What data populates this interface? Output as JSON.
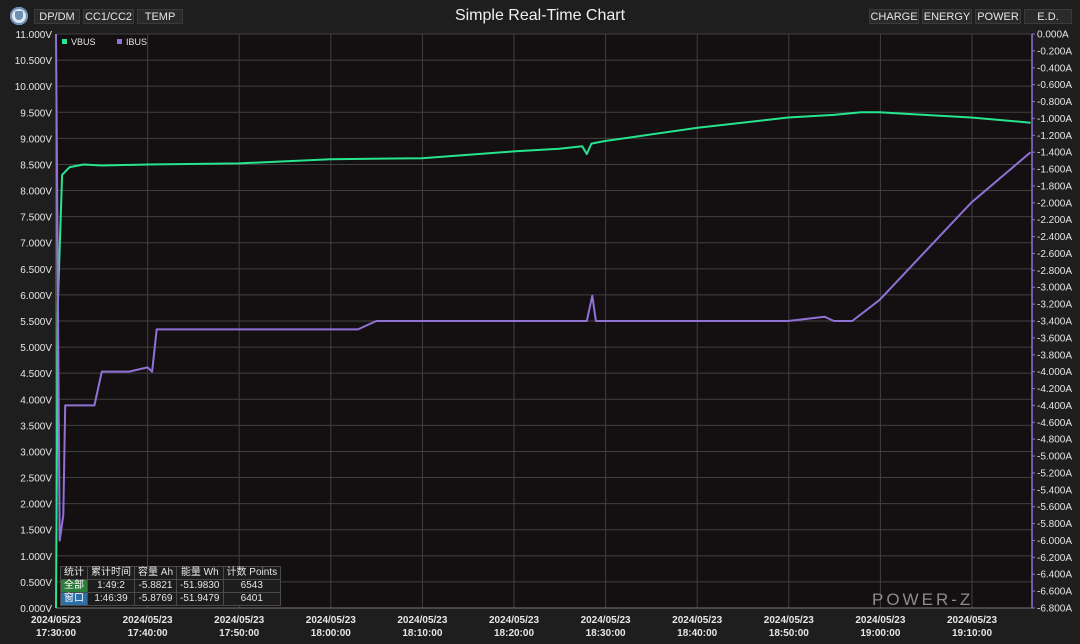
{
  "toolbar": {
    "left_tabs": [
      "DP/DM",
      "CC1/CC2",
      "TEMP"
    ],
    "right_tabs": [
      "CHARGE",
      "ENERGY",
      "POWER",
      "E.D."
    ]
  },
  "colors": {
    "vbus": "#27e48f",
    "ibus": "#9071d6",
    "plot_bg": "#140f11",
    "grid": "#404040"
  },
  "chart_data": {
    "type": "line",
    "title": "Simple Real-Time Chart",
    "legend": {
      "placement": "top-left",
      "entries": [
        "VBUS",
        "IBUS"
      ]
    },
    "grid": true,
    "x_ticks": [
      [
        "2024/05/23",
        "17:30:00"
      ],
      [
        "2024/05/23",
        "17:40:00"
      ],
      [
        "2024/05/23",
        "17:50:00"
      ],
      [
        "2024/05/23",
        "18:00:00"
      ],
      [
        "2024/05/23",
        "18:10:00"
      ],
      [
        "2024/05/23",
        "18:20:00"
      ],
      [
        "2024/05/23",
        "18:30:00"
      ],
      [
        "2024/05/23",
        "18:40:00"
      ],
      [
        "2024/05/23",
        "18:50:00"
      ],
      [
        "2024/05/23",
        "19:00:00"
      ],
      [
        "2024/05/23",
        "19:10:00"
      ]
    ],
    "x_range": [
      "17:30:00",
      "19:16:39"
    ],
    "y_left": {
      "unit": "V",
      "range": [
        0,
        11
      ],
      "ticks": [
        "11.000V",
        "10.500V",
        "10.000V",
        "9.500V",
        "9.000V",
        "8.500V",
        "8.000V",
        "7.500V",
        "7.000V",
        "6.500V",
        "6.000V",
        "5.500V",
        "5.000V",
        "4.500V",
        "4.000V",
        "3.500V",
        "3.000V",
        "2.500V",
        "2.000V",
        "1.500V",
        "1.000V",
        "0.500V",
        "0.000V"
      ]
    },
    "y_right": {
      "unit": "A",
      "range": [
        0,
        -6.8
      ],
      "ticks": [
        "0.000A",
        "-0.200A",
        "-0.400A",
        "-0.600A",
        "-0.800A",
        "-1.000A",
        "-1.200A",
        "-1.400A",
        "-1.600A",
        "-1.800A",
        "-2.000A",
        "-2.200A",
        "-2.400A",
        "-2.600A",
        "-2.800A",
        "-3.000A",
        "-3.200A",
        "-3.400A",
        "-3.600A",
        "-3.800A",
        "-4.000A",
        "-4.200A",
        "-4.400A",
        "-4.600A",
        "-4.800A",
        "-5.000A",
        "-5.200A",
        "-5.400A",
        "-5.600A",
        "-5.800A",
        "-6.000A",
        "-6.200A",
        "-6.400A",
        "-6.600A",
        "-6.800A"
      ]
    },
    "series": [
      {
        "name": "VBUS",
        "axis": "left",
        "x": [
          "17:30:00",
          "17:30:12",
          "17:30:40",
          "17:31:30",
          "17:33:00",
          "17:35:00",
          "17:40:00",
          "17:50:00",
          "18:00:00",
          "18:10:00",
          "18:20:00",
          "18:25:00",
          "18:27:30",
          "18:28:00",
          "18:28:30",
          "18:30:00",
          "18:40:00",
          "18:50:00",
          "18:55:00",
          "18:58:00",
          "19:00:00",
          "19:10:00",
          "19:16:30"
        ],
        "values": [
          0.0,
          5.8,
          8.3,
          8.45,
          8.5,
          8.48,
          8.5,
          8.52,
          8.6,
          8.62,
          8.75,
          8.8,
          8.85,
          8.7,
          8.9,
          8.95,
          9.2,
          9.4,
          9.45,
          9.5,
          9.5,
          9.4,
          9.3
        ]
      },
      {
        "name": "IBUS",
        "axis": "right",
        "x": [
          "17:30:00",
          "17:30:24",
          "17:30:48",
          "17:31:00",
          "17:31:24",
          "17:34:12",
          "17:35:00",
          "17:38:00",
          "17:40:00",
          "17:40:30",
          "17:41:00",
          "17:50:00",
          "18:00:00",
          "18:03:00",
          "18:05:00",
          "18:15:00",
          "18:28:00",
          "18:28:36",
          "18:29:00",
          "18:30:00",
          "18:40:00",
          "18:50:00",
          "18:54:00",
          "18:55:00",
          "18:57:00",
          "19:00:00",
          "19:10:00",
          "19:16:30"
        ],
        "values": [
          0.0,
          -6.0,
          -5.7,
          -4.4,
          -4.4,
          -4.4,
          -4.0,
          -4.0,
          -3.95,
          -4.0,
          -3.5,
          -3.5,
          -3.5,
          -3.5,
          -3.4,
          -3.4,
          -3.4,
          -3.1,
          -3.4,
          -3.4,
          -3.4,
          -3.4,
          -3.35,
          -3.4,
          -3.4,
          -3.15,
          -2.0,
          -1.4
        ]
      }
    ]
  },
  "stats_table": {
    "headers": [
      "统计",
      "累计时间",
      "容量 Ah",
      "能量 Wh",
      "计数 Points"
    ],
    "rows": [
      {
        "label": "全部",
        "time": "1:49:2",
        "ah": "-5.8821",
        "wh": "-51.9830",
        "points": "6543"
      },
      {
        "label": "窗口",
        "time": "1:46:39",
        "ah": "-5.8769",
        "wh": "-51.9479",
        "points": "6401"
      }
    ]
  },
  "watermark": "POWER-Z"
}
